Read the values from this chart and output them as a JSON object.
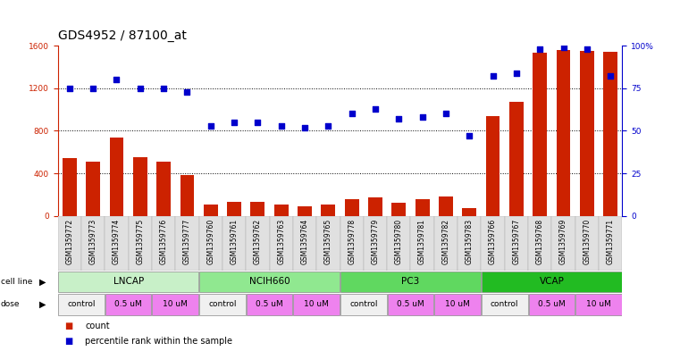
{
  "title": "GDS4952 / 87100_at",
  "samples": [
    "GSM1359772",
    "GSM1359773",
    "GSM1359774",
    "GSM1359775",
    "GSM1359776",
    "GSM1359777",
    "GSM1359760",
    "GSM1359761",
    "GSM1359762",
    "GSM1359763",
    "GSM1359764",
    "GSM1359765",
    "GSM1359778",
    "GSM1359779",
    "GSM1359780",
    "GSM1359781",
    "GSM1359782",
    "GSM1359783",
    "GSM1359766",
    "GSM1359767",
    "GSM1359768",
    "GSM1359769",
    "GSM1359770",
    "GSM1359771"
  ],
  "counts": [
    540,
    510,
    740,
    550,
    510,
    380,
    110,
    130,
    130,
    110,
    90,
    110,
    155,
    175,
    125,
    155,
    185,
    75,
    940,
    1075,
    1530,
    1560,
    1550,
    1540
  ],
  "percentile": [
    75,
    75,
    80,
    75,
    75,
    73,
    53,
    55,
    55,
    53,
    52,
    53,
    60,
    63,
    57,
    58,
    60,
    47,
    82,
    84,
    98,
    99,
    98,
    82
  ],
  "cell_lines": [
    {
      "name": "LNCAP",
      "start": 0,
      "end": 6,
      "color": "#c8f0c8"
    },
    {
      "name": "NCIH660",
      "start": 6,
      "end": 12,
      "color": "#90e890"
    },
    {
      "name": "PC3",
      "start": 12,
      "end": 18,
      "color": "#60d860"
    },
    {
      "name": "VCAP",
      "start": 18,
      "end": 24,
      "color": "#22bb22"
    }
  ],
  "dose_labels": [
    "control",
    "0.5 uM",
    "10 uM"
  ],
  "dose_colors": [
    "#f0f0f0",
    "#ee82ee",
    "#ee82ee"
  ],
  "bar_color": "#cc2200",
  "dot_color": "#0000cc",
  "ylim_left": [
    0,
    1600
  ],
  "ylim_right": [
    0,
    100
  ],
  "yticks_left": [
    0,
    400,
    800,
    1200,
    1600
  ],
  "yticks_right": [
    0,
    25,
    50,
    75,
    100
  ],
  "bg_color": "#ffffff",
  "grid_color": "#000000",
  "title_fontsize": 10,
  "tick_fontsize": 6.5,
  "label_fontsize": 8
}
